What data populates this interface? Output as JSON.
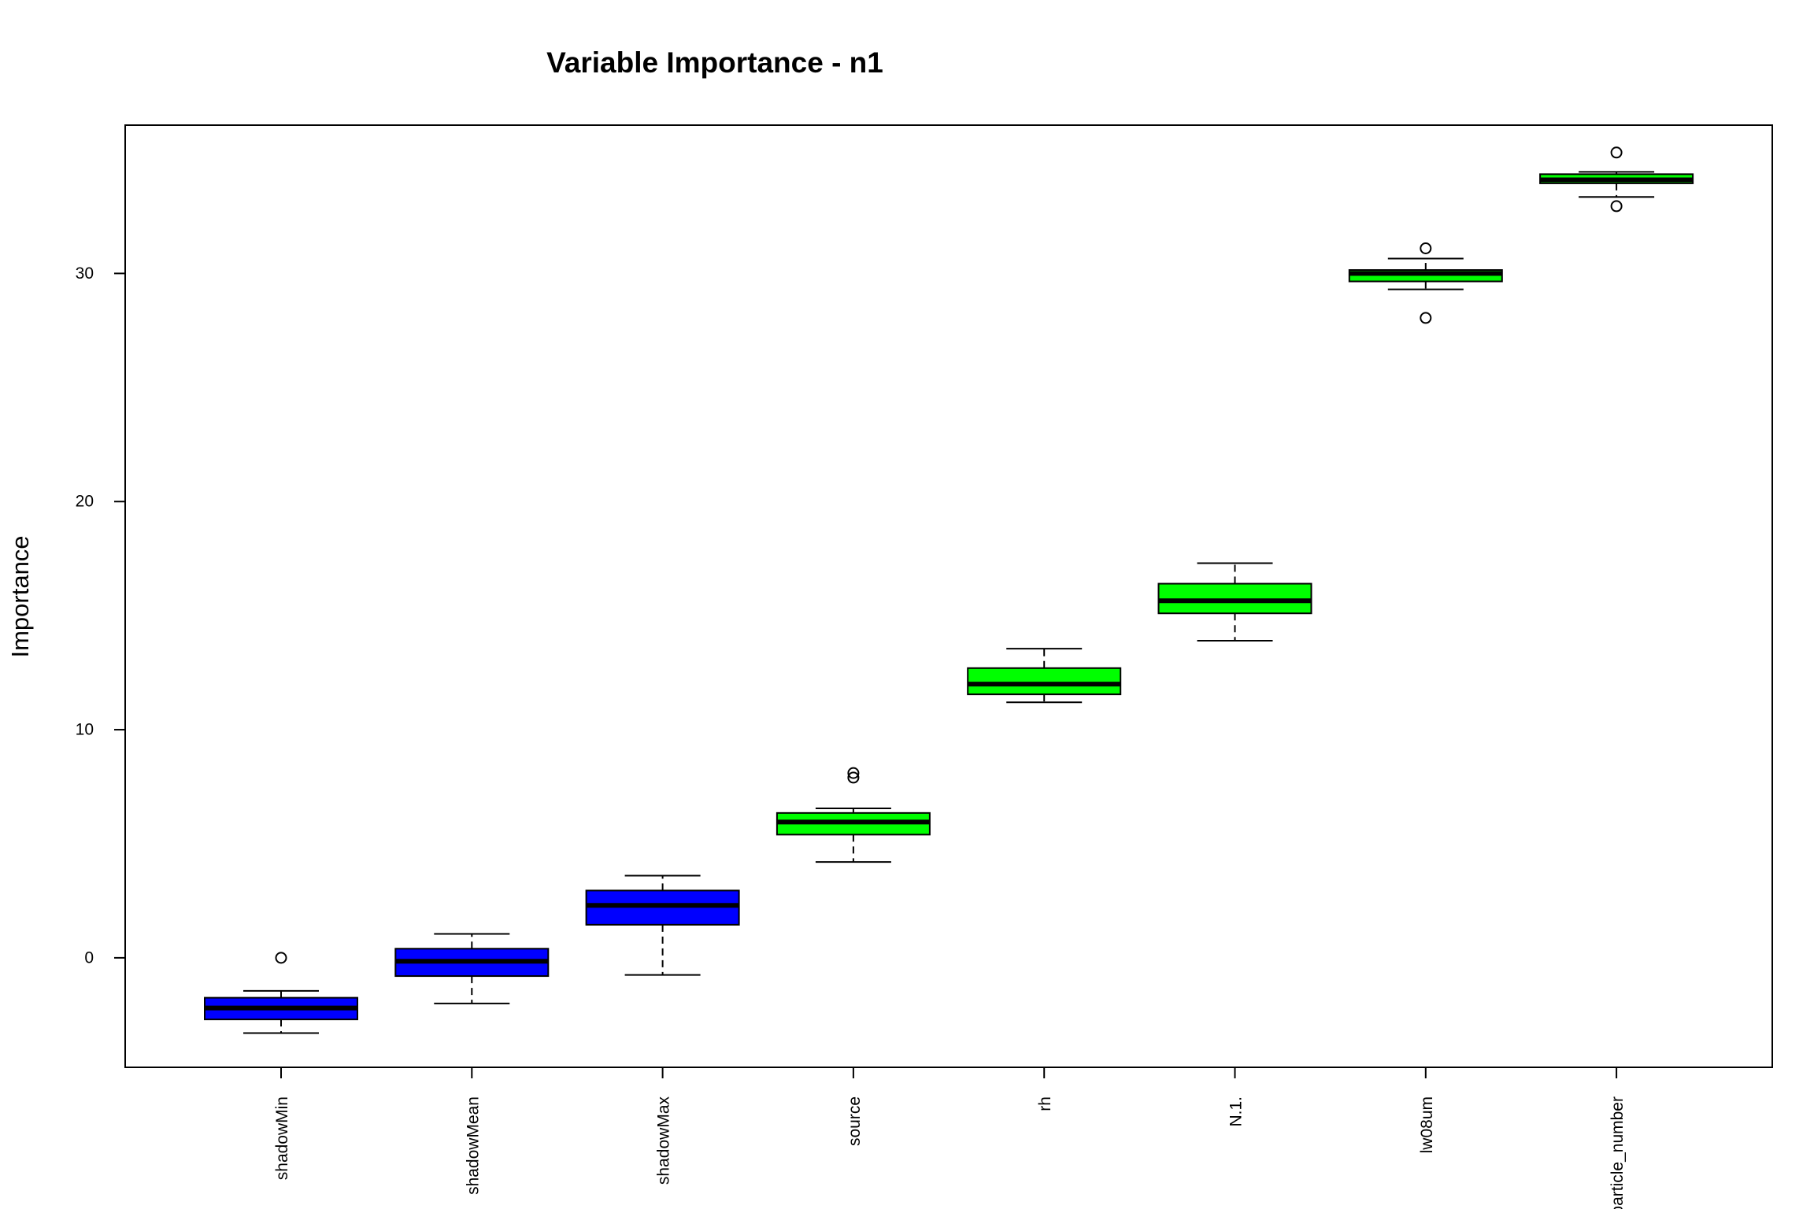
{
  "chart_data": {
    "type": "boxplot",
    "title": "Variable Importance - n1",
    "xlabel": "",
    "ylabel": "Importance",
    "ylim": [
      -4.8,
      36.5
    ],
    "yticks": [
      0,
      10,
      20,
      30
    ],
    "grid": false,
    "legend": "none",
    "categories": [
      "shadowMin",
      "shadowMean",
      "shadowMax",
      "source",
      "rh",
      "N.1.",
      "lw08um",
      "particle_number"
    ],
    "boxes": [
      {
        "name": "shadowMin",
        "whisker_low": -3.3,
        "q1": -2.7,
        "median": -2.2,
        "q3": -1.75,
        "whisker_high": -1.45,
        "outliers": [
          0.0
        ],
        "color": "#0000ff"
      },
      {
        "name": "shadowMean",
        "whisker_low": -2.0,
        "q1": -0.8,
        "median": -0.15,
        "q3": 0.4,
        "whisker_high": 1.05,
        "outliers": [],
        "color": "#0000ff"
      },
      {
        "name": "shadowMax",
        "whisker_low": -0.75,
        "q1": 1.45,
        "median": 2.3,
        "q3": 2.95,
        "whisker_high": 3.6,
        "outliers": [],
        "color": "#0000ff"
      },
      {
        "name": "source",
        "whisker_low": 4.2,
        "q1": 5.4,
        "median": 5.95,
        "q3": 6.35,
        "whisker_high": 6.55,
        "outliers": [
          7.9,
          8.1
        ],
        "color": "#00ff00"
      },
      {
        "name": "rh",
        "whisker_low": 11.2,
        "q1": 11.55,
        "median": 12.0,
        "q3": 12.7,
        "whisker_high": 13.55,
        "outliers": [],
        "color": "#00ff00"
      },
      {
        "name": "N.1.",
        "whisker_low": 13.9,
        "q1": 15.1,
        "median": 15.65,
        "q3": 16.4,
        "whisker_high": 17.3,
        "outliers": [],
        "color": "#00ff00"
      },
      {
        "name": "lw08um",
        "whisker_low": 29.3,
        "q1": 29.65,
        "median": 30.0,
        "q3": 30.15,
        "whisker_high": 30.65,
        "outliers": [
          28.05,
          31.1
        ],
        "color": "#00ff00"
      },
      {
        "name": "particle_number",
        "whisker_low": 33.35,
        "q1": 33.95,
        "median": 34.1,
        "q3": 34.35,
        "whisker_high": 34.45,
        "outliers": [
          32.95,
          35.3
        ],
        "color": "#00ff00"
      }
    ]
  }
}
